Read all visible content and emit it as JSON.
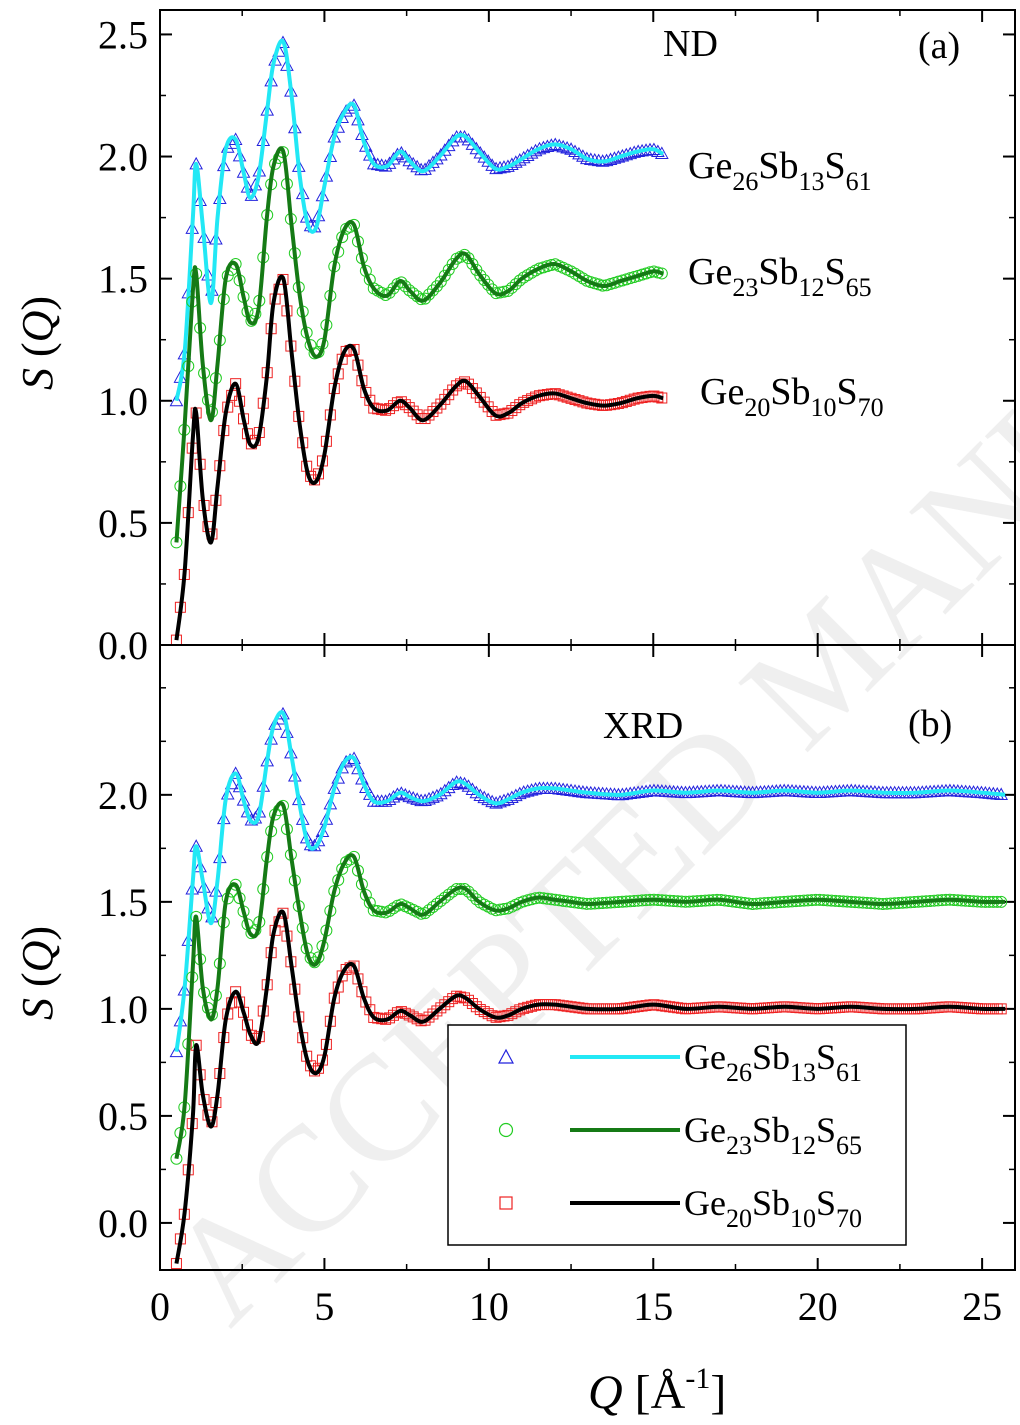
{
  "chart_data": [
    {
      "type": "line",
      "panel_label": "(a)",
      "technique": "ND",
      "xlim": [
        0,
        26
      ],
      "ylim": [
        0,
        2.6
      ],
      "yticks": [
        0.0,
        0.5,
        1.0,
        1.5,
        2.0,
        2.5
      ],
      "ylabel": "S (Q)",
      "series": [
        {
          "name": "Ge26Sb13S61",
          "marker": "triangle",
          "marker_color": "#2222dd",
          "line_color": "#22e8f5",
          "x": [
            0.5,
            0.75,
            1.0,
            1.1,
            1.3,
            1.55,
            1.75,
            2.0,
            2.3,
            2.55,
            2.75,
            3.0,
            3.25,
            3.45,
            3.75,
            4.0,
            4.25,
            4.5,
            4.75,
            5.0,
            5.3,
            5.6,
            5.9,
            6.2,
            6.5,
            6.9,
            7.3,
            7.6,
            8.0,
            8.5,
            9.0,
            9.3,
            9.7,
            10.2,
            10.6,
            11.0,
            11.5,
            12.0,
            12.5,
            13.0,
            13.5,
            14.0,
            14.5,
            15.0,
            15.3
          ],
          "y": [
            1.0,
            1.2,
            1.75,
            1.97,
            1.72,
            1.4,
            1.75,
            2.03,
            2.07,
            1.93,
            1.83,
            1.92,
            2.18,
            2.38,
            2.47,
            2.25,
            1.92,
            1.72,
            1.71,
            1.88,
            2.08,
            2.18,
            2.21,
            2.06,
            1.97,
            1.96,
            2.02,
            1.98,
            1.94,
            2.0,
            2.08,
            2.08,
            2.02,
            1.95,
            1.96,
            1.99,
            2.03,
            2.05,
            2.03,
            1.99,
            1.98,
            2.0,
            2.02,
            2.03,
            2.01
          ]
        },
        {
          "name": "Ge23Sb12S65",
          "marker": "circle",
          "marker_color": "#22cc22",
          "line_color": "#157a15",
          "x": [
            0.5,
            0.75,
            1.0,
            1.1,
            1.3,
            1.55,
            1.75,
            2.0,
            2.3,
            2.55,
            2.75,
            3.0,
            3.25,
            3.45,
            3.75,
            4.0,
            4.25,
            4.5,
            4.75,
            5.0,
            5.3,
            5.6,
            5.9,
            6.2,
            6.5,
            6.9,
            7.3,
            7.6,
            8.0,
            8.5,
            9.0,
            9.3,
            9.7,
            10.2,
            10.6,
            11.0,
            11.5,
            12.0,
            12.5,
            13.0,
            13.5,
            14.0,
            14.5,
            15.0,
            15.3
          ],
          "y": [
            0.42,
            0.9,
            1.45,
            1.52,
            1.15,
            0.92,
            1.15,
            1.5,
            1.56,
            1.42,
            1.32,
            1.38,
            1.75,
            1.96,
            2.02,
            1.72,
            1.43,
            1.25,
            1.18,
            1.25,
            1.55,
            1.7,
            1.72,
            1.55,
            1.46,
            1.43,
            1.49,
            1.45,
            1.41,
            1.48,
            1.58,
            1.6,
            1.52,
            1.44,
            1.45,
            1.5,
            1.54,
            1.56,
            1.53,
            1.49,
            1.47,
            1.49,
            1.51,
            1.53,
            1.52
          ]
        },
        {
          "name": "Ge20Sb10S70",
          "marker": "square",
          "marker_color": "#ee2222",
          "line_color": "#000000",
          "x": [
            0.5,
            0.75,
            1.0,
            1.1,
            1.3,
            1.55,
            1.75,
            2.0,
            2.3,
            2.55,
            2.75,
            3.0,
            3.25,
            3.45,
            3.75,
            4.0,
            4.25,
            4.5,
            4.75,
            5.0,
            5.3,
            5.6,
            5.9,
            6.2,
            6.5,
            6.9,
            7.3,
            7.6,
            8.0,
            8.5,
            9.0,
            9.3,
            9.7,
            10.2,
            10.6,
            11.0,
            11.5,
            12.0,
            12.5,
            13.0,
            13.5,
            14.0,
            14.5,
            15.0,
            15.3
          ],
          "y": [
            0.02,
            0.3,
            0.85,
            0.95,
            0.6,
            0.42,
            0.65,
            0.95,
            1.07,
            0.92,
            0.82,
            0.85,
            1.1,
            1.4,
            1.5,
            1.2,
            0.9,
            0.7,
            0.67,
            0.78,
            1.05,
            1.2,
            1.21,
            1.05,
            0.97,
            0.96,
            1.0,
            0.97,
            0.92,
            0.98,
            1.06,
            1.08,
            1.02,
            0.94,
            0.95,
            0.99,
            1.02,
            1.03,
            1.01,
            0.99,
            0.98,
            0.99,
            1.01,
            1.02,
            1.01
          ]
        }
      ],
      "annotations": [
        {
          "base": "Ge",
          "sub1": "26",
          "el2": "Sb",
          "sub2": "13",
          "el3": "S",
          "sub3": "61"
        },
        {
          "base": "Ge",
          "sub1": "23",
          "el2": "Sb",
          "sub2": "12",
          "el3": "S",
          "sub3": "65"
        },
        {
          "base": "Ge",
          "sub1": "20",
          "el2": "Sb",
          "sub2": "10",
          "el3": "S",
          "sub3": "70"
        }
      ]
    },
    {
      "type": "line",
      "panel_label": "(b)",
      "technique": "XRD",
      "xlim": [
        0,
        26
      ],
      "ylim": [
        -0.22,
        2.7
      ],
      "yticks": [
        0.0,
        0.5,
        1.0,
        1.5,
        2.0
      ],
      "xticks": [
        0,
        5,
        10,
        15,
        20,
        25
      ],
      "xlabel": "Q [Å-1]",
      "ylabel": "S (Q)",
      "series": [
        {
          "name": "Ge26Sb13S61",
          "marker": "triangle",
          "marker_color": "#2222dd",
          "line_color": "#22e8f5",
          "x": [
            0.5,
            0.75,
            1.0,
            1.1,
            1.3,
            1.55,
            1.75,
            2.0,
            2.3,
            2.55,
            2.75,
            3.0,
            3.25,
            3.45,
            3.75,
            4.0,
            4.25,
            4.5,
            4.75,
            5.0,
            5.3,
            5.6,
            5.9,
            6.2,
            6.5,
            6.9,
            7.3,
            7.6,
            8.0,
            8.5,
            9.0,
            9.3,
            9.7,
            10.2,
            10.6,
            11.0,
            11.5,
            12.0,
            12.5,
            13.0,
            14.0,
            15.0,
            16.0,
            17.0,
            18.0,
            19.0,
            20.0,
            21.0,
            22.0,
            23.0,
            24.0,
            25.0,
            25.7
          ],
          "y": [
            0.8,
            1.1,
            1.6,
            1.76,
            1.6,
            1.4,
            1.6,
            1.98,
            2.1,
            1.97,
            1.88,
            1.9,
            2.15,
            2.32,
            2.38,
            2.18,
            1.95,
            1.77,
            1.76,
            1.85,
            2.03,
            2.15,
            2.17,
            2.05,
            1.97,
            1.97,
            2.01,
            1.99,
            1.97,
            2.0,
            2.06,
            2.05,
            2.0,
            1.96,
            1.98,
            2.01,
            2.03,
            2.03,
            2.02,
            2.01,
            2.0,
            2.02,
            2.01,
            2.02,
            2.01,
            2.02,
            2.01,
            2.02,
            2.01,
            2.01,
            2.02,
            2.01,
            2.0
          ]
        },
        {
          "name": "Ge23Sb12S65",
          "marker": "circle",
          "marker_color": "#22cc22",
          "line_color": "#157a15",
          "x": [
            0.5,
            0.75,
            1.0,
            1.1,
            1.3,
            1.55,
            1.75,
            2.0,
            2.3,
            2.55,
            2.75,
            3.0,
            3.25,
            3.45,
            3.75,
            4.0,
            4.25,
            4.5,
            4.75,
            5.0,
            5.3,
            5.6,
            5.9,
            6.2,
            6.5,
            6.9,
            7.3,
            7.6,
            8.0,
            8.5,
            9.0,
            9.3,
            9.7,
            10.2,
            10.6,
            11.0,
            11.5,
            12.0,
            12.5,
            13.0,
            14.0,
            15.0,
            16.0,
            17.0,
            18.0,
            19.0,
            20.0,
            21.0,
            22.0,
            23.0,
            24.0,
            25.0,
            25.7
          ],
          "y": [
            0.3,
            0.55,
            1.2,
            1.43,
            1.1,
            0.95,
            1.1,
            1.5,
            1.58,
            1.45,
            1.35,
            1.38,
            1.7,
            1.9,
            1.95,
            1.7,
            1.45,
            1.25,
            1.21,
            1.32,
            1.55,
            1.68,
            1.71,
            1.55,
            1.46,
            1.45,
            1.49,
            1.47,
            1.44,
            1.5,
            1.56,
            1.56,
            1.5,
            1.46,
            1.47,
            1.5,
            1.52,
            1.51,
            1.5,
            1.49,
            1.5,
            1.51,
            1.5,
            1.51,
            1.49,
            1.5,
            1.51,
            1.5,
            1.49,
            1.5,
            1.51,
            1.5,
            1.5
          ]
        },
        {
          "name": "Ge20Sb10S70",
          "marker": "square",
          "marker_color": "#ee2222",
          "line_color": "#000000",
          "x": [
            0.5,
            0.75,
            1.0,
            1.1,
            1.3,
            1.55,
            1.75,
            2.0,
            2.3,
            2.55,
            2.75,
            3.0,
            3.25,
            3.45,
            3.75,
            4.0,
            4.25,
            4.5,
            4.75,
            5.0,
            5.3,
            5.6,
            5.9,
            6.2,
            6.5,
            6.9,
            7.3,
            7.6,
            8.0,
            8.5,
            9.0,
            9.3,
            9.7,
            10.2,
            10.6,
            11.0,
            11.5,
            12.0,
            12.5,
            13.0,
            14.0,
            15.0,
            16.0,
            17.0,
            18.0,
            19.0,
            20.0,
            21.0,
            22.0,
            23.0,
            24.0,
            25.0,
            25.7
          ],
          "y": [
            -0.19,
            0.05,
            0.5,
            0.83,
            0.6,
            0.45,
            0.6,
            0.95,
            1.08,
            0.98,
            0.88,
            0.85,
            1.1,
            1.35,
            1.45,
            1.2,
            0.93,
            0.75,
            0.7,
            0.78,
            1.05,
            1.18,
            1.2,
            1.05,
            0.96,
            0.95,
            0.99,
            0.97,
            0.94,
            1.0,
            1.06,
            1.05,
            1.0,
            0.96,
            0.97,
            1.0,
            1.02,
            1.02,
            1.01,
            1.0,
            1.0,
            1.02,
            1.0,
            1.01,
            1.0,
            1.01,
            1.0,
            1.01,
            1.0,
            1.0,
            1.01,
            1.0,
            1.0
          ]
        }
      ],
      "legend": {
        "placement": "bottom-right",
        "entries": [
          {
            "base": "Ge",
            "sub1": "26",
            "el2": "Sb",
            "sub2": "13",
            "el3": "S",
            "sub3": "61"
          },
          {
            "base": "Ge",
            "sub1": "23",
            "el2": "Sb",
            "sub2": "12",
            "el3": "S",
            "sub3": "65"
          },
          {
            "base": "Ge",
            "sub1": "20",
            "el2": "Sb",
            "sub2": "10",
            "el3": "S",
            "sub3": "70"
          }
        ]
      }
    }
  ],
  "axis_text": {
    "ylabel_italic": "S",
    "ylabel_open": " (",
    "ylabel_var": "Q",
    "ylabel_close": ")",
    "xlabel_var": "Q",
    "xlabel_unit_open": " [Å",
    "xlabel_exp": "-1",
    "xlabel_unit_close": "]"
  },
  "watermark": "ACCEPTED MANUSCRIPT"
}
